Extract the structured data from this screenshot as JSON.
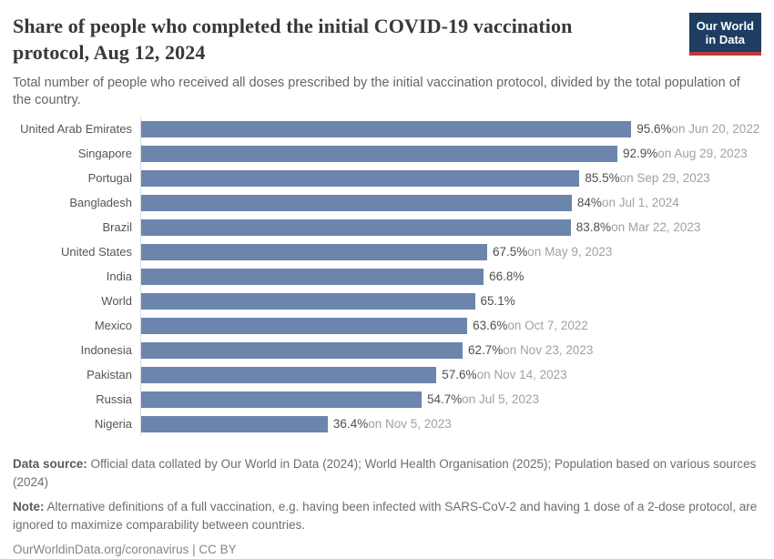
{
  "header": {
    "title": "Share of people who completed the initial COVID-19 vaccination protocol, Aug 12, 2024",
    "subtitle": "Total number of people who received all doses prescribed by the initial vaccination protocol, divided by the total population of the country.",
    "logo": {
      "line1": "Our World",
      "line2": "in Data"
    }
  },
  "chart_data": {
    "type": "bar",
    "orientation": "horizontal",
    "title": "Share of people who completed the initial COVID-19 vaccination protocol, Aug 12, 2024",
    "xlabel": "",
    "ylabel": "",
    "unit": "%",
    "xlim": [
      0,
      100
    ],
    "grid": false,
    "bar_color": "#6c85ad",
    "categories": [
      "United Arab Emirates",
      "Singapore",
      "Portugal",
      "Bangladesh",
      "Brazil",
      "United States",
      "India",
      "World",
      "Mexico",
      "Indonesia",
      "Pakistan",
      "Russia",
      "Nigeria"
    ],
    "values": [
      95.6,
      92.9,
      85.5,
      84,
      83.8,
      67.5,
      66.8,
      65.1,
      63.6,
      62.7,
      57.6,
      54.7,
      36.4
    ],
    "value_labels": [
      "95.6%",
      "92.9%",
      "85.5%",
      "84%",
      "83.8%",
      "67.5%",
      "66.8%",
      "65.1%",
      "63.6%",
      "62.7%",
      "57.6%",
      "54.7%",
      "36.4%"
    ],
    "date_labels": [
      "on Jun 20, 2022",
      "on Aug 29, 2023",
      "on Sep 29, 2023",
      "on Jul 1, 2024",
      "on Mar 22, 2023",
      "on May 9, 2023",
      "",
      "",
      "on Oct 7, 2022",
      "on Nov 23, 2023",
      "on Nov 14, 2023",
      "on Jul 5, 2023",
      "on Nov 5, 2023"
    ]
  },
  "footer": {
    "data_source_label": "Data source:",
    "data_source_text": " Official data collated by Our World in Data (2024); World Health Organisation (2025); Population based on various sources (2024)",
    "note_label": "Note:",
    "note_text": " Alternative definitions of a full vaccination, e.g. having been infected with SARS-CoV-2 and having 1 dose of a 2-dose protocol, are ignored to maximize comparability between countries.",
    "url": "OurWorldinData.org/coronavirus",
    "separator": " | ",
    "license": "CC BY"
  },
  "colors": {
    "bar": "#6c85ad",
    "axis_line": "#dadada",
    "title_text": "#383838",
    "value_text": "#4f4f4f",
    "date_text": "#a1a1a1",
    "logo_background": "#1d3d63",
    "logo_accent": "#bf3936"
  }
}
